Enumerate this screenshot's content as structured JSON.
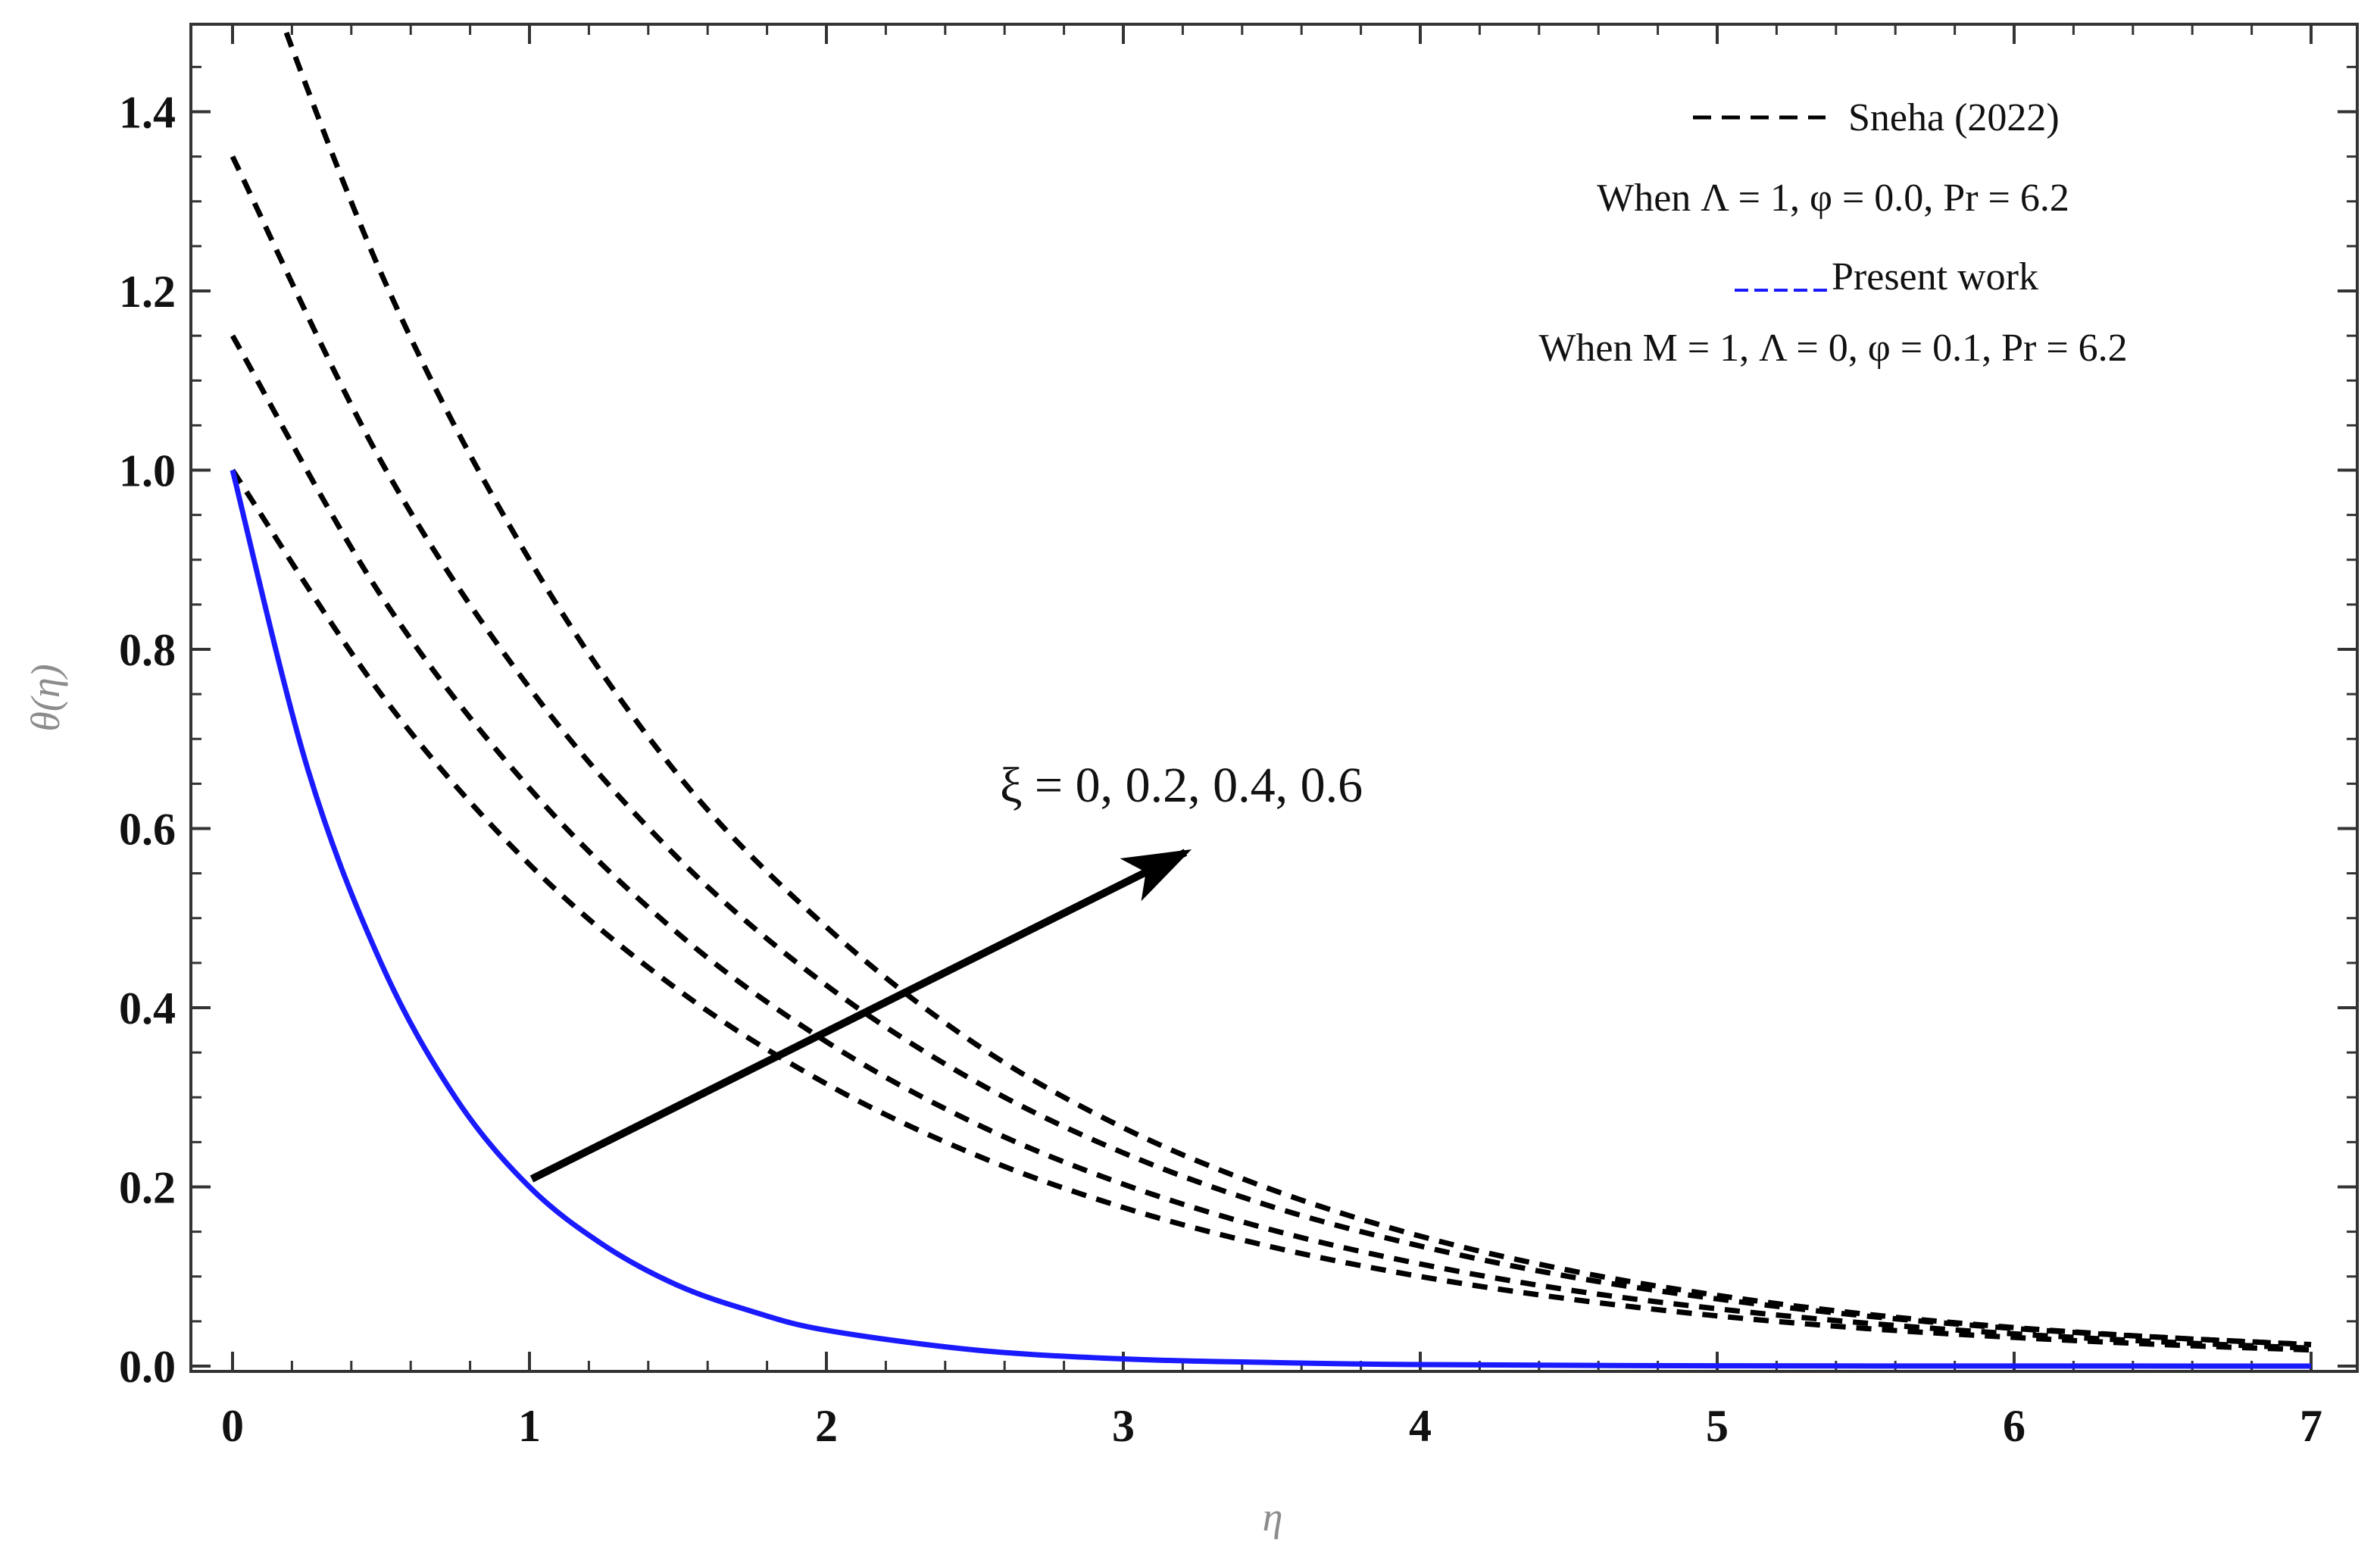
{
  "chart_data": {
    "type": "line",
    "xlabel": "η",
    "ylabel": "θ(η)",
    "xlim": [
      0,
      7
    ],
    "ylim": [
      0,
      1.5
    ],
    "xticks": [
      "0",
      "1",
      "2",
      "3",
      "4",
      "5",
      "6",
      "7"
    ],
    "yticks": [
      "0.0",
      "0.2",
      "0.4",
      "0.6",
      "0.8",
      "1.0",
      "1.2",
      "1.4"
    ],
    "grid": false,
    "legend_placement": "top-right",
    "legend": [
      "Sneha (2022)",
      "When Λ = 1, φ = 0.0, Pr = 6.2",
      "Present work",
      "When M = 1, Λ = 0, φ = 0.1, Pr = 6.2"
    ],
    "annotation": "ξ = 0, 0.2, 0.4, 0.6",
    "series": [
      {
        "style": "dashed",
        "color": "#000000",
        "x": [
          0,
          0.5,
          1,
          1.5,
          2,
          2.5,
          3,
          3.5,
          4,
          4.5,
          5,
          5.5,
          6,
          6.5,
          7
        ],
        "y": [
          1.0,
          0.75,
          0.56,
          0.42,
          0.315,
          0.236,
          0.177,
          0.133,
          0.1,
          0.075,
          0.056,
          0.042,
          0.032,
          0.024,
          0.018
        ]
      },
      {
        "style": "dashed",
        "color": "#000000",
        "x": [
          0,
          0.5,
          1,
          1.5,
          2,
          2.5,
          3,
          3.5,
          4,
          4.5,
          5,
          5.5,
          6,
          6.5,
          7
        ],
        "y": [
          1.15,
          0.86,
          0.645,
          0.483,
          0.362,
          0.271,
          0.203,
          0.152,
          0.114,
          0.085,
          0.064,
          0.048,
          0.036,
          0.027,
          0.02
        ]
      },
      {
        "style": "dashed",
        "color": "#000000",
        "x": [
          0,
          0.5,
          1,
          1.5,
          2,
          2.5,
          3,
          3.5,
          4,
          4.5,
          5,
          5.5,
          6,
          6.5,
          7
        ],
        "y": [
          1.35,
          1.01,
          0.757,
          0.567,
          0.425,
          0.318,
          0.238,
          0.178,
          0.134,
          0.1,
          0.075,
          0.056,
          0.042,
          0.032,
          0.024
        ]
      },
      {
        "style": "dashed",
        "color": "#000000",
        "x": [
          0,
          0.5,
          1,
          1.5,
          2,
          2.5,
          3,
          3.5,
          4,
          4.5,
          5,
          5.5,
          6,
          6.5,
          7
        ],
        "y": [
          1.65,
          1.22,
          0.9,
          0.66,
          0.49,
          0.36,
          0.266,
          0.197,
          0.145,
          0.107,
          0.079,
          0.058,
          0.043,
          0.032,
          0.024
        ]
      },
      {
        "style": "solid",
        "color": "#1a1aff",
        "x": [
          0,
          0.25,
          0.5,
          0.75,
          1,
          1.25,
          1.5,
          1.75,
          2,
          2.5,
          3,
          3.5,
          4,
          5,
          6,
          7
        ],
        "y": [
          1.0,
          0.67,
          0.45,
          0.3,
          0.2,
          0.135,
          0.09,
          0.061,
          0.04,
          0.018,
          0.008,
          0.004,
          0.0017,
          0.0003,
          0.0001,
          0.0
        ]
      }
    ]
  }
}
